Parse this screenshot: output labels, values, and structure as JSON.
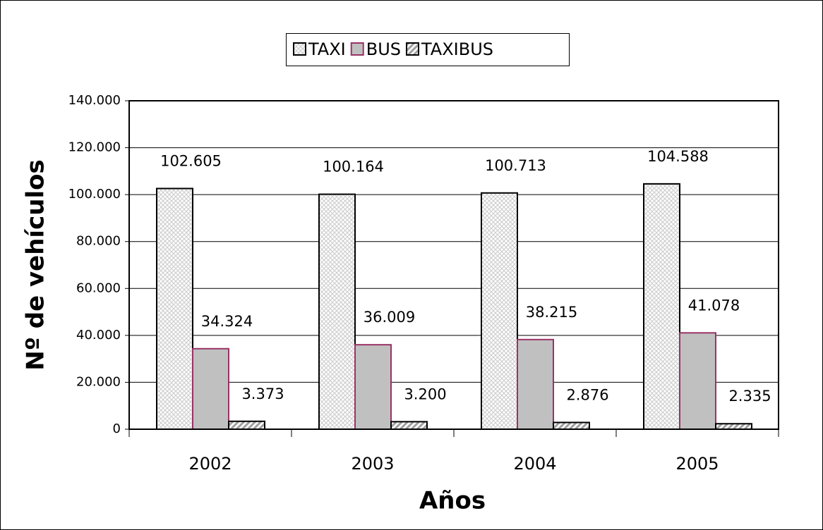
{
  "chart_data": {
    "type": "bar",
    "y_label": "Nº de vehículos",
    "x_label": "Años",
    "categories": [
      "2002",
      "2003",
      "2004",
      "2005"
    ],
    "series": [
      {
        "name": "TAXI",
        "color": "#e4e4e4",
        "values": [
          102605,
          100164,
          100713,
          104588
        ],
        "value_labels": [
          "102.605",
          "100.164",
          "100.713",
          "104.588"
        ]
      },
      {
        "name": "BUS",
        "color": "#c0c0c0",
        "values": [
          34324,
          36009,
          38215,
          41078
        ],
        "value_labels": [
          "34.324",
          "36.009",
          "38.215",
          "41.078"
        ]
      },
      {
        "name": "TAXIBUS",
        "color": "#a0a0a0",
        "values": [
          3373,
          3200,
          2876,
          2335
        ],
        "value_labels": [
          "3.373",
          "3.200",
          "2.876",
          "2.335"
        ]
      }
    ],
    "ylim": [
      0,
      140000
    ],
    "yticks": [
      0,
      {
        "value": 20000,
        "label": "20.000"
      },
      {
        "value": 40000,
        "label": "40.000"
      },
      {
        "value": 60000,
        "label": "60.000"
      },
      {
        "value": 80000,
        "label": "80.000"
      },
      {
        "value": 100000,
        "label": "100.000"
      },
      {
        "value": 120000,
        "label": "120.000"
      },
      {
        "value": 140000,
        "label": "140.000"
      }
    ],
    "grid": true,
    "legend": "top"
  }
}
